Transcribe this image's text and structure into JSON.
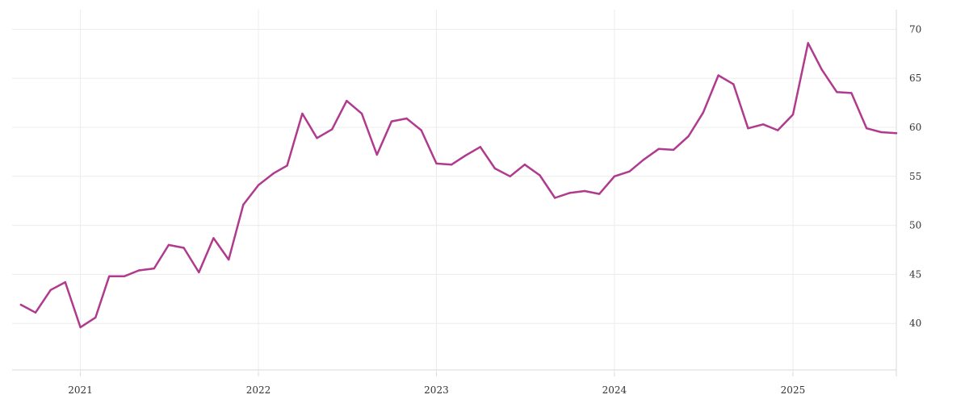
{
  "chart_data": {
    "type": "line",
    "title": "",
    "xlabel": "",
    "ylabel": "",
    "x_ticks": [
      "2021",
      "2022",
      "2023",
      "2024",
      "2025"
    ],
    "y_ticks": [
      40,
      45,
      50,
      55,
      60,
      65,
      70
    ],
    "ylim": [
      35,
      72
    ],
    "xlim": [
      "2020-08-14",
      "2025-08-01"
    ],
    "grid": true,
    "y_axis_position": "right",
    "legend": "none",
    "series": [
      {
        "color": "#b03a8e",
        "points": [
          [
            "2020-09-01",
            41.9
          ],
          [
            "2020-10-01",
            41.1
          ],
          [
            "2020-11-01",
            43.4
          ],
          [
            "2020-12-01",
            44.2
          ],
          [
            "2021-01-01",
            39.6
          ],
          [
            "2021-02-01",
            40.6
          ],
          [
            "2021-03-01",
            44.8
          ],
          [
            "2021-04-01",
            44.8
          ],
          [
            "2021-05-01",
            45.4
          ],
          [
            "2021-06-01",
            45.6
          ],
          [
            "2021-07-01",
            48.0
          ],
          [
            "2021-08-01",
            47.7
          ],
          [
            "2021-09-01",
            45.2
          ],
          [
            "2021-10-01",
            48.7
          ],
          [
            "2021-11-01",
            46.5
          ],
          [
            "2021-12-01",
            52.1
          ],
          [
            "2022-01-01",
            54.1
          ],
          [
            "2022-02-01",
            55.3
          ],
          [
            "2022-03-01",
            56.1
          ],
          [
            "2022-04-01",
            61.4
          ],
          [
            "2022-05-01",
            58.9
          ],
          [
            "2022-06-01",
            59.8
          ],
          [
            "2022-07-01",
            62.7
          ],
          [
            "2022-08-01",
            61.4
          ],
          [
            "2022-09-01",
            57.2
          ],
          [
            "2022-10-01",
            60.6
          ],
          [
            "2022-11-01",
            60.9
          ],
          [
            "2022-12-01",
            59.7
          ],
          [
            "2023-01-01",
            56.3
          ],
          [
            "2023-02-01",
            56.2
          ],
          [
            "2023-03-01",
            57.1
          ],
          [
            "2023-04-01",
            58.0
          ],
          [
            "2023-05-01",
            55.8
          ],
          [
            "2023-06-01",
            55.0
          ],
          [
            "2023-07-01",
            56.2
          ],
          [
            "2023-08-01",
            55.1
          ],
          [
            "2023-09-01",
            52.8
          ],
          [
            "2023-10-01",
            53.3
          ],
          [
            "2023-11-01",
            53.5
          ],
          [
            "2023-12-01",
            53.2
          ],
          [
            "2024-01-01",
            55.0
          ],
          [
            "2024-02-01",
            55.5
          ],
          [
            "2024-03-01",
            56.7
          ],
          [
            "2024-04-01",
            57.8
          ],
          [
            "2024-05-01",
            57.7
          ],
          [
            "2024-06-01",
            59.1
          ],
          [
            "2024-07-01",
            61.5
          ],
          [
            "2024-08-01",
            65.3
          ],
          [
            "2024-09-01",
            64.4
          ],
          [
            "2024-10-01",
            59.9
          ],
          [
            "2024-11-01",
            60.3
          ],
          [
            "2024-12-01",
            59.7
          ],
          [
            "2025-01-01",
            61.3
          ],
          [
            "2025-02-01",
            68.6
          ],
          [
            "2025-03-01",
            65.9
          ],
          [
            "2025-04-01",
            63.6
          ],
          [
            "2025-05-01",
            63.5
          ],
          [
            "2025-06-01",
            59.9
          ],
          [
            "2025-07-01",
            59.5
          ],
          [
            "2025-08-01",
            59.4
          ]
        ]
      }
    ]
  }
}
